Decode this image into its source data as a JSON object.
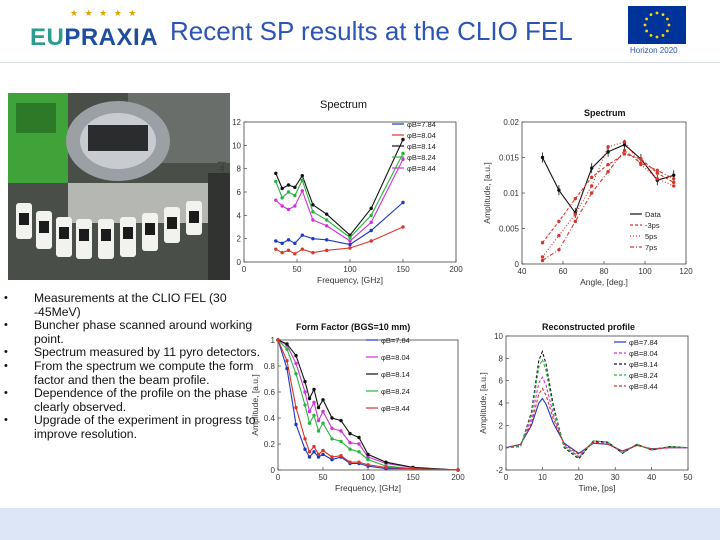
{
  "header": {
    "logo_eu": "EU",
    "logo_prax": "PRAXIA",
    "title": "Recent SP results at the CLIO FEL",
    "horizon_label": "Horizon 2020"
  },
  "colors": {
    "title_blue": "#2b54b5",
    "footer_bg": "#dde6f6"
  },
  "bullets": [
    "Measurements at the CLIO FEL (30 -45MeV)",
    "Buncher phase scanned around working point.",
    "Spectrum measured by 11 pyro detectors.",
    "From the spectrum we compute the form factor and then the beam profile.",
    "Dependence of the profile on the phase clearly observed.",
    "Upgrade of the experiment in progress to improve resolution."
  ],
  "chart_data": [
    {
      "id": "spectrum",
      "type": "line",
      "title": "Spectrum",
      "xlabel": "Frequency, [GHz]",
      "ylabel": "Amplitude, [a.u.]",
      "xlim": [
        0,
        200
      ],
      "ylim": [
        0,
        12
      ],
      "xticks": [
        "0",
        "50",
        "100",
        "150",
        "200"
      ],
      "yticks": [
        "0",
        "2",
        "4",
        "6",
        "8",
        "10",
        "12"
      ],
      "x": [
        30,
        36,
        42,
        48,
        55,
        65,
        78,
        100,
        120,
        150
      ],
      "series": [
        {
          "name": "φB=7.84",
          "color": "#1a37c8",
          "values": [
            1.8,
            1.6,
            1.9,
            1.6,
            2.3,
            2.0,
            1.9,
            1.5,
            2.7,
            5.1
          ]
        },
        {
          "name": "φB=8.04",
          "color": "#d8342a",
          "values": [
            1.1,
            0.8,
            1.0,
            0.7,
            1.1,
            0.8,
            1.0,
            1.2,
            1.8,
            3.0
          ]
        },
        {
          "name": "φB=8.14",
          "color": "#111111",
          "values": [
            7.6,
            6.3,
            6.6,
            6.4,
            7.4,
            4.9,
            4.1,
            2.3,
            4.6,
            10.5
          ]
        },
        {
          "name": "φB=8.24",
          "color": "#29b33d",
          "values": [
            6.9,
            5.5,
            6.0,
            5.7,
            7.0,
            4.3,
            3.6,
            2.1,
            4.0,
            9.3
          ]
        },
        {
          "name": "φB=8.44",
          "color": "#d230d8",
          "values": [
            5.3,
            4.8,
            4.5,
            4.8,
            6.1,
            3.6,
            3.1,
            1.8,
            3.4,
            8.8
          ]
        }
      ]
    },
    {
      "id": "spectrum-angle",
      "type": "line",
      "title": "Spectrum",
      "xlabel": "Angle, [deg.]",
      "ylabel": "Amplitude, [a.u.]",
      "xlim": [
        40,
        120
      ],
      "ylim": [
        0,
        0.02
      ],
      "xticks": [
        "40",
        "60",
        "80",
        "100",
        "120"
      ],
      "yticks": [
        "0",
        "0.005",
        "0.01",
        "0.015",
        "0.02"
      ],
      "x": [
        50,
        58,
        66,
        74,
        82,
        90,
        98,
        106,
        114
      ],
      "series": [
        {
          "name": "Data",
          "color": "#111111",
          "values": [
            0.015,
            0.0104,
            0.0072,
            0.0135,
            0.0158,
            0.0168,
            0.0148,
            0.0118,
            0.0125
          ]
        },
        {
          "name": "-3ps",
          "color": "#d8342a",
          "values": [
            0.003,
            0.006,
            0.0092,
            0.0122,
            0.014,
            0.0155,
            0.0148,
            0.0128,
            0.0115
          ]
        },
        {
          "name": "5ps",
          "color": "#d8342a",
          "values": [
            0.001,
            0.004,
            0.007,
            0.011,
            0.0165,
            0.0172,
            0.014,
            0.012,
            0.011
          ]
        },
        {
          "name": "7ps",
          "color": "#d8342a",
          "values": [
            0.0005,
            0.002,
            0.006,
            0.01,
            0.013,
            0.016,
            0.0142,
            0.0132,
            0.012
          ]
        }
      ]
    },
    {
      "id": "form-factor",
      "type": "line",
      "title": "Form Factor (BGS=10 mm)",
      "xlabel": "Frequency, [GHz]",
      "ylabel": "Amplitude, [a.u.]",
      "xlim": [
        0,
        200
      ],
      "ylim": [
        0,
        1
      ],
      "xticks": [
        "0",
        "50",
        "100",
        "150",
        "200"
      ],
      "yticks": [
        "0",
        "0.2",
        "0.4",
        "0.6",
        "0.8",
        "1"
      ],
      "x": [
        0,
        10,
        20,
        30,
        35,
        40,
        45,
        50,
        60,
        70,
        80,
        90,
        100,
        120,
        150,
        200
      ],
      "series": [
        {
          "name": "φB=7.84",
          "color": "#1a37c8",
          "values": [
            1.0,
            0.78,
            0.35,
            0.16,
            0.1,
            0.14,
            0.1,
            0.12,
            0.08,
            0.1,
            0.05,
            0.05,
            0.03,
            0.01,
            0.01,
            0.0
          ]
        },
        {
          "name": "φB=8.04",
          "color": "#d230d8",
          "values": [
            1.0,
            0.96,
            0.82,
            0.6,
            0.45,
            0.52,
            0.38,
            0.45,
            0.32,
            0.3,
            0.21,
            0.2,
            0.1,
            0.05,
            0.02,
            0.0
          ]
        },
        {
          "name": "φB=8.14",
          "color": "#111111",
          "values": [
            1.0,
            0.97,
            0.88,
            0.68,
            0.55,
            0.62,
            0.48,
            0.54,
            0.4,
            0.38,
            0.28,
            0.25,
            0.12,
            0.06,
            0.02,
            0.0
          ]
        },
        {
          "name": "φB=8.24",
          "color": "#29b33d",
          "values": [
            1.0,
            0.93,
            0.74,
            0.5,
            0.36,
            0.42,
            0.3,
            0.36,
            0.24,
            0.22,
            0.16,
            0.14,
            0.08,
            0.03,
            0.01,
            0.0
          ]
        },
        {
          "name": "φB=8.44",
          "color": "#d8342a",
          "values": [
            1.0,
            0.84,
            0.48,
            0.24,
            0.14,
            0.18,
            0.12,
            0.15,
            0.1,
            0.11,
            0.06,
            0.06,
            0.04,
            0.02,
            0.01,
            0.0
          ]
        }
      ]
    },
    {
      "id": "reconstructed-profile",
      "type": "line",
      "title": "Reconstructed profile",
      "xlabel": "Time, [ps]",
      "ylabel": "Amplitude, [a.u.]",
      "xlim": [
        0,
        50
      ],
      "ylim": [
        -2,
        10
      ],
      "xticks": [
        "0",
        "10",
        "20",
        "30",
        "40",
        "50"
      ],
      "yticks": [
        "-2",
        "0",
        "2",
        "4",
        "6",
        "8",
        "10"
      ],
      "x": [
        0,
        4,
        7,
        9,
        10,
        11,
        13,
        16,
        20,
        24,
        28,
        32,
        36,
        40,
        45,
        50
      ],
      "series": [
        {
          "name": "φB=7.84",
          "color": "#1a37c8",
          "values": [
            0,
            0.3,
            2.0,
            4.0,
            4.4,
            3.9,
            2.2,
            0.4,
            -0.5,
            0.4,
            0.3,
            -0.3,
            0.2,
            -0.1,
            0.0,
            0.0
          ]
        },
        {
          "name": "φB=8.04",
          "color": "#d230d8",
          "values": [
            0,
            0.2,
            2.6,
            5.8,
            6.3,
            5.6,
            3.0,
            0.2,
            -0.8,
            0.5,
            0.4,
            -0.4,
            0.3,
            -0.2,
            0.0,
            0.0
          ]
        },
        {
          "name": "φB=8.14",
          "color": "#111111",
          "values": [
            0,
            0.1,
            3.2,
            7.8,
            8.6,
            7.5,
            3.8,
            0.0,
            -1.0,
            0.6,
            0.5,
            -0.5,
            0.3,
            -0.2,
            0.1,
            0.0
          ]
        },
        {
          "name": "φB=8.24",
          "color": "#29b33d",
          "values": [
            0,
            0.1,
            3.0,
            7.2,
            7.9,
            6.9,
            3.5,
            0.1,
            -0.9,
            0.6,
            0.5,
            -0.5,
            0.3,
            -0.2,
            0.1,
            0.0
          ]
        },
        {
          "name": "φB=8.44",
          "color": "#d8342a",
          "values": [
            0,
            0.3,
            2.2,
            4.8,
            5.3,
            4.7,
            2.6,
            0.3,
            -0.6,
            0.5,
            0.3,
            -0.3,
            0.2,
            -0.1,
            0.0,
            0.0
          ]
        }
      ]
    }
  ],
  "photo": {
    "alt": "beamline-photo"
  }
}
